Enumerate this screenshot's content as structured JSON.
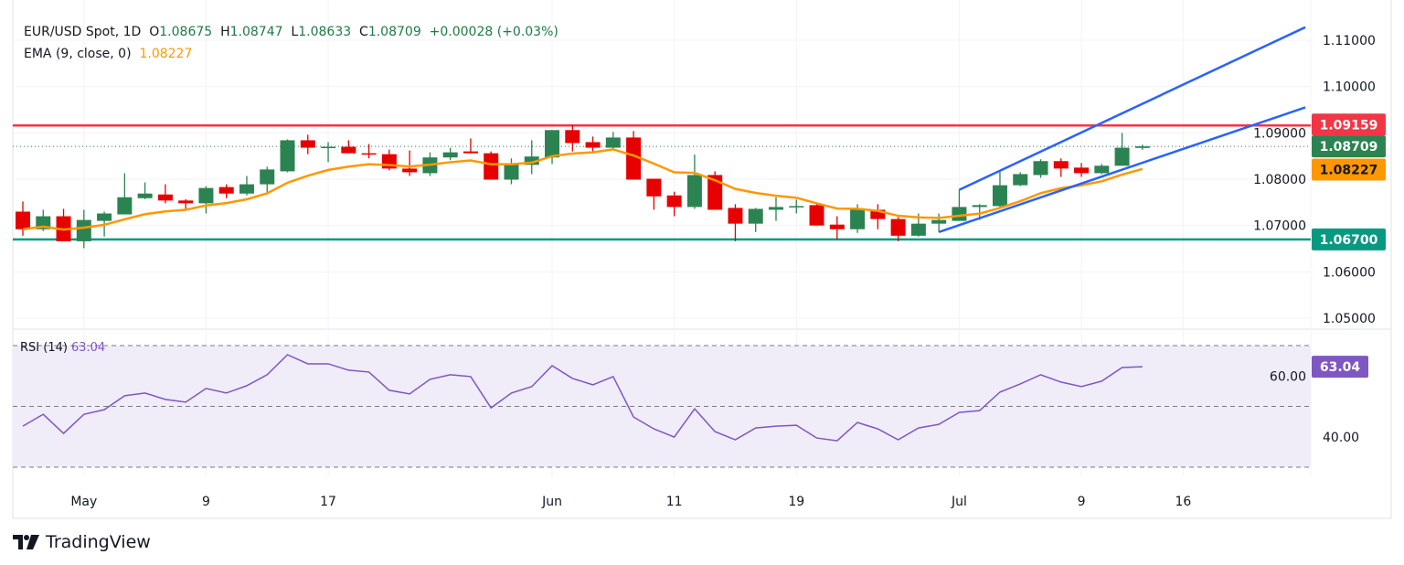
{
  "header": {
    "symbol": "EUR/USD Spot, 1D",
    "o_label": "O",
    "o_value": "1.08675",
    "h_label": "H",
    "h_value": "1.08747",
    "l_label": "L",
    "l_value": "1.08633",
    "c_label": "C",
    "c_value": "1.08709",
    "change": "+0.00028 (+0.03%)"
  },
  "ema_legend": {
    "label": "EMA (9, close, 0)",
    "value": "1.08227"
  },
  "rsi_legend": {
    "label": "RSI (14)",
    "value": "63.04"
  },
  "branding": {
    "name": "TradingView"
  },
  "colors": {
    "up": "#2b8352",
    "down": "#e60000",
    "ema": "#ff9800",
    "trendline": "#2962ff",
    "resistance": "#f23645",
    "support": "#089981",
    "rsi": "#7e57c2",
    "rsi_band": "#f0ecf8"
  },
  "chart_data": [
    {
      "type": "candlestick",
      "title": "EUR/USD Spot, 1D",
      "ylim": [
        1.045,
        1.1187
      ],
      "grid": true,
      "price_ticks": [
        "1.11000",
        "1.10000",
        "1.09000",
        "1.08000",
        "1.07000",
        "1.06000",
        "1.05000"
      ],
      "time_ticks": [
        {
          "label": "May",
          "date": "2024-05-01"
        },
        {
          "label": "9",
          "date": "2024-05-09"
        },
        {
          "label": "17",
          "date": "2024-05-17"
        },
        {
          "label": "Jun",
          "date": "2024-06-03"
        },
        {
          "label": "11",
          "date": "2024-06-11"
        },
        {
          "label": "19",
          "date": "2024-06-19"
        },
        {
          "label": "Jul",
          "date": "2024-07-01"
        },
        {
          "label": "9",
          "date": "2024-07-09"
        },
        {
          "label": "16",
          "date": "2024-07-16"
        }
      ],
      "candles": [
        [
          "2024-04-26",
          1.073,
          1.0752,
          1.0678,
          1.0692
        ],
        [
          "2024-04-29",
          1.0692,
          1.0734,
          1.0688,
          1.072
        ],
        [
          "2024-04-30",
          1.072,
          1.0736,
          1.0666,
          1.0666
        ],
        [
          "2024-05-01",
          1.0666,
          1.0734,
          1.0651,
          1.0712
        ],
        [
          "2024-05-02",
          1.071,
          1.073,
          1.0676,
          1.0726
        ],
        [
          "2024-05-03",
          1.0724,
          1.0813,
          1.0724,
          1.0761
        ],
        [
          "2024-05-06",
          1.0759,
          1.0793,
          1.0757,
          1.0769
        ],
        [
          "2024-05-07",
          1.0767,
          1.0789,
          1.0748,
          1.0754
        ],
        [
          "2024-05-08",
          1.0754,
          1.0757,
          1.0736,
          1.0748
        ],
        [
          "2024-05-09",
          1.0748,
          1.0785,
          1.0726,
          1.0781
        ],
        [
          "2024-05-10",
          1.0783,
          1.0789,
          1.0759,
          1.0769
        ],
        [
          "2024-05-13",
          1.0769,
          1.0807,
          1.0765,
          1.0789
        ],
        [
          "2024-05-14",
          1.0789,
          1.0827,
          1.0767,
          1.0821
        ],
        [
          "2024-05-15",
          1.0817,
          1.0886,
          1.0815,
          1.0884
        ],
        [
          "2024-05-16",
          1.0884,
          1.0896,
          1.0854,
          1.0868
        ],
        [
          "2024-05-17",
          1.0868,
          1.088,
          1.0837,
          1.087
        ],
        [
          "2024-05-20",
          1.087,
          1.0884,
          1.0856,
          1.0856
        ],
        [
          "2024-05-21",
          1.0856,
          1.0876,
          1.0845,
          1.0853
        ],
        [
          "2024-05-22",
          1.0854,
          1.0864,
          1.0819,
          1.0823
        ],
        [
          "2024-05-23",
          1.0823,
          1.0862,
          1.0807,
          1.0815
        ],
        [
          "2024-05-24",
          1.0813,
          1.0858,
          1.0807,
          1.0847
        ],
        [
          "2024-05-27",
          1.0847,
          1.0868,
          1.0841,
          1.0858
        ],
        [
          "2024-05-28",
          1.086,
          1.0888,
          1.0856,
          1.0856
        ],
        [
          "2024-05-29",
          1.0856,
          1.086,
          1.0799,
          1.0799
        ],
        [
          "2024-05-30",
          1.0799,
          1.0845,
          1.0789,
          1.0833
        ],
        [
          "2024-05-31",
          1.0831,
          1.0884,
          1.0811,
          1.0849
        ],
        [
          "2024-06-03",
          1.0847,
          1.0906,
          1.0833,
          1.0906
        ],
        [
          "2024-06-04",
          1.0906,
          1.0918,
          1.086,
          1.0878
        ],
        [
          "2024-06-05",
          1.088,
          1.0892,
          1.0856,
          1.0868
        ],
        [
          "2024-06-06",
          1.0868,
          1.0902,
          1.0864,
          1.089
        ],
        [
          "2024-06-07",
          1.089,
          1.0904,
          1.0799,
          1.0799
        ],
        [
          "2024-06-10",
          1.0801,
          1.0801,
          1.0734,
          1.0763
        ],
        [
          "2024-06-11",
          1.0765,
          1.0773,
          1.072,
          1.074
        ],
        [
          "2024-06-12",
          1.074,
          1.0853,
          1.0736,
          1.0809
        ],
        [
          "2024-06-13",
          1.0809,
          1.0817,
          1.0734,
          1.0734
        ],
        [
          "2024-06-14",
          1.0738,
          1.0746,
          1.0666,
          1.0704
        ],
        [
          "2024-06-17",
          1.0704,
          1.0738,
          1.0686,
          1.0736
        ],
        [
          "2024-06-18",
          1.0734,
          1.0761,
          1.071,
          1.074
        ],
        [
          "2024-06-19",
          1.074,
          1.0756,
          1.0726,
          1.0742
        ],
        [
          "2024-06-20",
          1.0744,
          1.0748,
          1.07,
          1.07
        ],
        [
          "2024-06-21",
          1.0702,
          1.072,
          1.067,
          1.0692
        ],
        [
          "2024-06-24",
          1.0692,
          1.0746,
          1.0684,
          1.0734
        ],
        [
          "2024-06-25",
          1.0734,
          1.0746,
          1.0692,
          1.0714
        ],
        [
          "2024-06-26",
          1.0714,
          1.0718,
          1.0666,
          1.0678
        ],
        [
          "2024-06-27",
          1.0678,
          1.0726,
          1.0676,
          1.0704
        ],
        [
          "2024-06-28",
          1.0704,
          1.0726,
          1.0686,
          1.0712
        ],
        [
          "2024-07-01",
          1.071,
          1.0777,
          1.071,
          1.074
        ],
        [
          "2024-07-02",
          1.074,
          1.0746,
          1.0712,
          1.0744
        ],
        [
          "2024-07-03",
          1.0742,
          1.0817,
          1.0738,
          1.0787
        ],
        [
          "2024-07-04",
          1.0787,
          1.0815,
          1.0785,
          1.0811
        ],
        [
          "2024-07-05",
          1.0809,
          1.0843,
          1.0803,
          1.0839
        ],
        [
          "2024-07-08",
          1.0839,
          1.0845,
          1.0805,
          1.0823
        ],
        [
          "2024-07-09",
          1.0825,
          1.0835,
          1.0805,
          1.0813
        ],
        [
          "2024-07-10",
          1.0813,
          1.0833,
          1.0811,
          1.0829
        ],
        [
          "2024-07-11",
          1.0829,
          1.09,
          1.0829,
          1.0868
        ],
        [
          "2024-07-12",
          1.08675,
          1.08747,
          1.08633,
          1.08709
        ]
      ],
      "ema_period": 9,
      "horizontal_levels": [
        {
          "value": 1.09159,
          "label": "1.09159",
          "role": "resistance"
        },
        {
          "value": 1.067,
          "label": "1.06700",
          "role": "support"
        }
      ],
      "last_price": {
        "value": 1.08709,
        "label": "1.08709"
      },
      "ema_last": {
        "value": 1.08227,
        "label": "1.08227"
      },
      "trendlines": [
        {
          "name": "upper-channel",
          "from": [
            "2024-07-01",
            1.0777
          ],
          "to": [
            "2024-07-24",
            1.1128
          ]
        },
        {
          "name": "lower-channel",
          "from": [
            "2024-06-28",
            1.0686
          ],
          "to": [
            "2024-07-24",
            1.0955
          ]
        }
      ]
    },
    {
      "type": "line",
      "title": "RSI (14)",
      "ylim": [
        26,
        74
      ],
      "levels": [
        70,
        50,
        30
      ],
      "ticks": [
        "60.00",
        "40.00"
      ],
      "tick_values": [
        60,
        40
      ],
      "values": [
        43.5,
        47.4,
        41.1,
        47.4,
        48.9,
        53.5,
        54.4,
        52.3,
        51.4,
        55.9,
        54.4,
        56.8,
        60.4,
        67.0,
        64.0,
        64.0,
        61.9,
        61.3,
        55.3,
        54.1,
        58.9,
        60.4,
        59.8,
        49.5,
        54.4,
        56.5,
        63.4,
        59.2,
        57.1,
        59.8,
        46.5,
        42.6,
        39.9,
        49.2,
        41.7,
        39.0,
        42.9,
        43.5,
        43.8,
        39.6,
        38.7,
        44.7,
        42.6,
        39.0,
        42.9,
        44.1,
        48.0,
        48.6,
        54.7,
        57.4,
        60.4,
        58.0,
        56.5,
        58.3,
        62.8,
        63.04
      ],
      "last": {
        "value": 63.04,
        "label": "63.04"
      }
    }
  ]
}
